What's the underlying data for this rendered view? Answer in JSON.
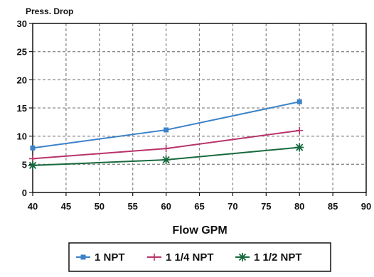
{
  "chart_data": {
    "type": "line",
    "ylabel": "Press. Drop",
    "xlabel": "Flow GPM",
    "xlim": [
      40,
      90
    ],
    "ylim": [
      0,
      30
    ],
    "x_ticks": [
      "40",
      "45",
      "50",
      "55",
      "60",
      "65",
      "70",
      "75",
      "80",
      "85",
      "90"
    ],
    "y_ticks": [
      "0",
      "5",
      "10",
      "15",
      "20",
      "25",
      "30"
    ],
    "grid": true,
    "legend_position": "bottom",
    "series": [
      {
        "name": "1 NPT",
        "color": "#3b82c8",
        "marker": "square",
        "x": [
          40,
          60,
          80
        ],
        "y": [
          7.9,
          11.1,
          16.1
        ]
      },
      {
        "name": "1 1/4 NPT",
        "color": "#b8336a",
        "marker": "plus",
        "x": [
          40,
          60,
          80
        ],
        "y": [
          6.0,
          7.8,
          11.0
        ]
      },
      {
        "name": "1 1/2 NPT",
        "color": "#17693d",
        "marker": "star",
        "x": [
          40,
          60,
          80
        ],
        "y": [
          4.8,
          5.8,
          8.0
        ]
      }
    ]
  }
}
